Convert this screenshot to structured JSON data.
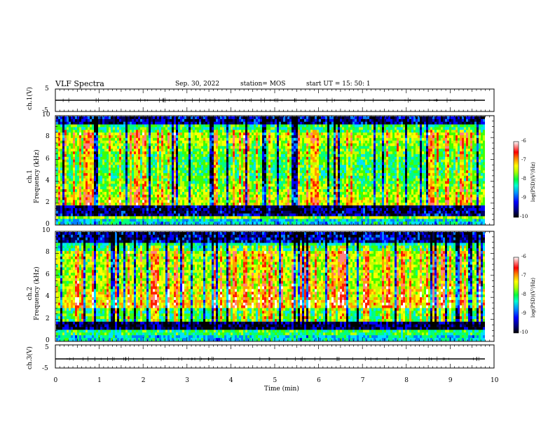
{
  "header": {
    "title": "VLF Spectra",
    "date": "Sep. 30, 2022",
    "station": "station= MOS",
    "start": "start  UT =   15: 50: 1"
  },
  "chart_data": [
    {
      "type": "line",
      "panel": "ch1-waveform",
      "ylabel": "ch.1(V)",
      "ylim": [
        -5,
        5
      ],
      "yticks": [
        "5",
        "-5"
      ],
      "baseline_value": 0,
      "color": "#000000"
    },
    {
      "type": "heatmap",
      "panel": "ch1-spectrogram",
      "ylabel": "ch.1\nFrequency (kHz)",
      "ylim": [
        0,
        10
      ],
      "yticks": [
        "0",
        "2",
        "4",
        "6",
        "8",
        "10"
      ],
      "xlim": [
        0,
        10
      ],
      "colorbar": {
        "label": "log(PSD)(V²/Hz)",
        "ticks": [
          "-6",
          "-7",
          "-8",
          "-9",
          "-10"
        ],
        "range": [
          -10,
          -6
        ]
      }
    },
    {
      "type": "heatmap",
      "panel": "ch2-spectrogram",
      "ylabel": "ch.2\nFrequency (kHz)",
      "ylim": [
        0,
        10
      ],
      "yticks": [
        "0",
        "2",
        "4",
        "6",
        "8",
        "10"
      ],
      "xlim": [
        0,
        10
      ],
      "colorbar": {
        "label": "log(PSD)(V²/Hz)",
        "ticks": [
          "-6",
          "-7",
          "-8",
          "-9",
          "-10"
        ],
        "range": [
          -10,
          -6
        ]
      }
    },
    {
      "type": "line",
      "panel": "ch3-waveform",
      "ylabel": "ch.3(V)",
      "ylim": [
        -5,
        5
      ],
      "yticks": [
        "5",
        "-5"
      ],
      "baseline_value": 0,
      "color": "#000000"
    }
  ],
  "xaxis": {
    "label": "Time  (min)",
    "ticks": [
      "0",
      "1",
      "2",
      "3",
      "4",
      "5",
      "6",
      "7",
      "8",
      "9",
      "10"
    ],
    "xlim": [
      0,
      10
    ]
  },
  "colormap": [
    "#000000",
    "#000060",
    "#0000ff",
    "#0080ff",
    "#00e0ff",
    "#00ff80",
    "#40ff00",
    "#c0ff00",
    "#ffff00",
    "#ffa000",
    "#ff2000",
    "#ff8080",
    "#ffffff"
  ]
}
